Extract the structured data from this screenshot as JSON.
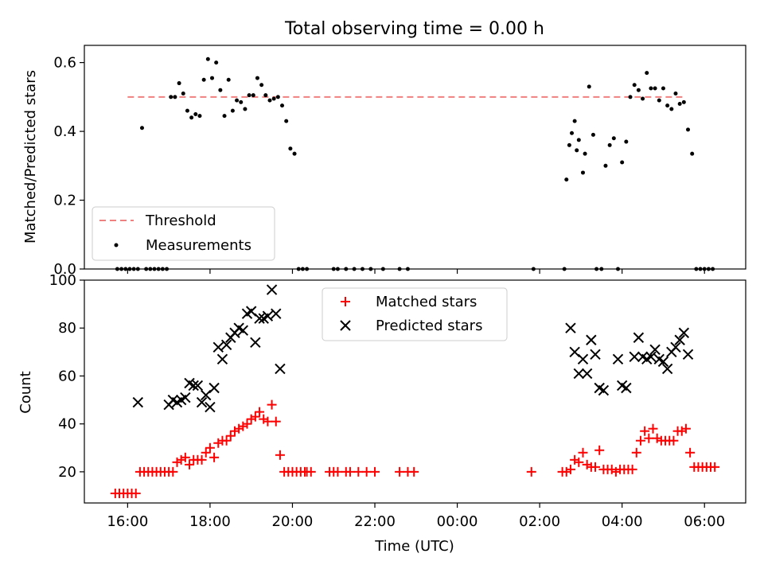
{
  "chart_data": [
    {
      "type": "scatter",
      "title": "Total observing time = 0.00 h",
      "ylabel": "Matched/Predicted stars",
      "ylim": [
        0,
        0.65
      ],
      "yticks": [
        "0.0",
        "0.2",
        "0.4",
        "0.6"
      ],
      "xlim": [
        -1.05,
        15.0
      ],
      "threshold": {
        "name": "Threshold",
        "value": 0.5,
        "x": [
          0.0,
          13.5
        ],
        "color": "#f08080"
      },
      "series": [
        {
          "name": "Measurements",
          "color": "#000000",
          "x": [
            -0.25,
            -0.15,
            -0.05,
            0.05,
            0.15,
            0.25,
            0.35,
            0.45,
            0.55,
            0.65,
            0.75,
            0.85,
            0.95,
            1.05,
            1.15,
            1.25,
            1.35,
            1.45,
            1.55,
            1.65,
            1.75,
            1.85,
            1.95,
            2.05,
            2.15,
            2.25,
            2.35,
            2.45,
            2.55,
            2.65,
            2.75,
            2.85,
            2.95,
            3.05,
            3.15,
            3.25,
            3.35,
            3.45,
            3.55,
            3.65,
            3.75,
            3.85,
            3.95,
            4.05,
            4.15,
            4.25,
            4.35,
            5.0,
            5.1,
            5.3,
            5.5,
            5.7,
            5.9,
            6.2,
            6.6,
            6.8,
            9.85,
            10.6,
            10.65,
            10.72,
            10.78,
            10.85,
            10.9,
            10.95,
            11.05,
            11.1,
            11.2,
            11.3,
            11.38,
            11.5,
            11.6,
            11.7,
            11.8,
            11.9,
            12.0,
            12.1,
            12.2,
            12.3,
            12.4,
            12.5,
            12.6,
            12.7,
            12.8,
            12.9,
            13.0,
            13.1,
            13.2,
            13.3,
            13.4,
            13.5,
            13.6,
            13.7,
            13.8,
            13.9,
            14.0,
            14.1,
            14.2
          ],
          "y": [
            0,
            0,
            0,
            0,
            0,
            0,
            0.41,
            0,
            0,
            0,
            0,
            0,
            0,
            0.5,
            0.5,
            0.54,
            0.51,
            0.46,
            0.44,
            0.45,
            0.445,
            0.55,
            0.61,
            0.555,
            0.6,
            0.52,
            0.445,
            0.55,
            0.46,
            0.49,
            0.485,
            0.465,
            0.505,
            0.505,
            0.555,
            0.535,
            0.505,
            0.49,
            0.495,
            0.5,
            0.475,
            0.43,
            0.35,
            0.335,
            0,
            0,
            0,
            0,
            0,
            0,
            0,
            0,
            0,
            0,
            0,
            0,
            0,
            0,
            0.26,
            0.36,
            0.395,
            0.43,
            0.345,
            0.375,
            0.28,
            0.335,
            0.53,
            0.39,
            0,
            0,
            0.3,
            0.36,
            0.38,
            0,
            0.31,
            0.37,
            0.5,
            0.535,
            0.52,
            0.495,
            0.57,
            0.525,
            0.525,
            0.49,
            0.525,
            0.475,
            0.465,
            0.51,
            0.48,
            0.485,
            0.405,
            0.335,
            0,
            0,
            0,
            0,
            0
          ]
        }
      ],
      "legend": "lower-left"
    },
    {
      "type": "scatter",
      "xlabel": "Time (UTC)",
      "ylabel": "Count",
      "ylim": [
        7,
        100
      ],
      "yticks": [
        "20",
        "40",
        "60",
        "80",
        "100"
      ],
      "xlim": [
        -1.05,
        15.0
      ],
      "xticks": [
        "16:00",
        "18:00",
        "20:00",
        "22:00",
        "00:00",
        "02:00",
        "04:00",
        "06:00"
      ],
      "series": [
        {
          "name": "Matched stars",
          "color": "#ff0000",
          "marker": "plus",
          "x": [
            -0.3,
            -0.2,
            -0.1,
            0,
            0.1,
            0.2,
            0.3,
            0.4,
            0.5,
            0.6,
            0.7,
            0.8,
            0.9,
            1.0,
            1.1,
            1.2,
            1.3,
            1.4,
            1.5,
            1.6,
            1.7,
            1.8,
            1.9,
            2.0,
            2.1,
            2.2,
            2.3,
            2.4,
            2.5,
            2.6,
            2.7,
            2.8,
            2.9,
            3.0,
            3.1,
            3.2,
            3.3,
            3.4,
            3.5,
            3.6,
            3.7,
            3.8,
            3.9,
            4.0,
            4.1,
            4.2,
            4.3,
            4.35,
            4.45,
            4.9,
            5.0,
            5.1,
            5.3,
            5.4,
            5.6,
            5.8,
            6.0,
            6.6,
            6.8,
            6.95,
            9.8,
            10.55,
            10.65,
            10.75,
            10.85,
            10.95,
            11.05,
            11.15,
            11.25,
            11.35,
            11.45,
            11.55,
            11.65,
            11.75,
            11.85,
            11.95,
            12.05,
            12.15,
            12.25,
            12.35,
            12.45,
            12.55,
            12.65,
            12.75,
            12.85,
            12.95,
            13.05,
            13.15,
            13.25,
            13.35,
            13.45,
            13.55,
            13.65,
            13.75,
            13.85,
            13.95,
            14.05,
            14.15,
            14.25
          ],
          "y": [
            11,
            11,
            11,
            11,
            11,
            11,
            20,
            20,
            20,
            20,
            20,
            20,
            20,
            20,
            20,
            24,
            25,
            26,
            23,
            25,
            25,
            25,
            28,
            30,
            26,
            32,
            33,
            33,
            35,
            37,
            38,
            39,
            40,
            42,
            43,
            45,
            42,
            41,
            48,
            41,
            27,
            20,
            20,
            20,
            20,
            20,
            20,
            20,
            20,
            20,
            20,
            20,
            20,
            20,
            20,
            20,
            20,
            20,
            20,
            20,
            20,
            20,
            20,
            21,
            25,
            24,
            28,
            23,
            22,
            22,
            29,
            21,
            21,
            21,
            20,
            21,
            21,
            21,
            21,
            28,
            33,
            37,
            34,
            38,
            34,
            33,
            33,
            33,
            33,
            37,
            37,
            38,
            28,
            22,
            22,
            22,
            22,
            22,
            22
          ]
        },
        {
          "name": "Predicted stars",
          "color": "#000000",
          "marker": "x",
          "x": [
            0.25,
            1.0,
            1.1,
            1.2,
            1.3,
            1.4,
            1.5,
            1.6,
            1.7,
            1.8,
            1.9,
            2.0,
            2.1,
            2.2,
            2.3,
            2.4,
            2.5,
            2.6,
            2.7,
            2.8,
            2.9,
            3.0,
            3.1,
            3.2,
            3.3,
            3.4,
            3.5,
            3.6,
            3.7,
            10.75,
            10.85,
            10.95,
            11.05,
            11.15,
            11.25,
            11.35,
            11.45,
            11.55,
            11.9,
            12.0,
            12.1,
            12.3,
            12.4,
            12.5,
            12.6,
            12.7,
            12.8,
            12.9,
            13.0,
            13.1,
            13.2,
            13.3,
            13.4,
            13.5,
            13.6
          ],
          "y": [
            49,
            48,
            50,
            49,
            50,
            51,
            57,
            56,
            56,
            49,
            52,
            47,
            55,
            72,
            67,
            73,
            76,
            78,
            80,
            79,
            86,
            87,
            74,
            84,
            84,
            85,
            96,
            86,
            63,
            80,
            70,
            61,
            67,
            61,
            75,
            69,
            55,
            54,
            67,
            56,
            55,
            68,
            76,
            68,
            67,
            68,
            71,
            67,
            66,
            63,
            70,
            72,
            75,
            78,
            69
          ]
        }
      ],
      "legend": "upper-center"
    }
  ]
}
